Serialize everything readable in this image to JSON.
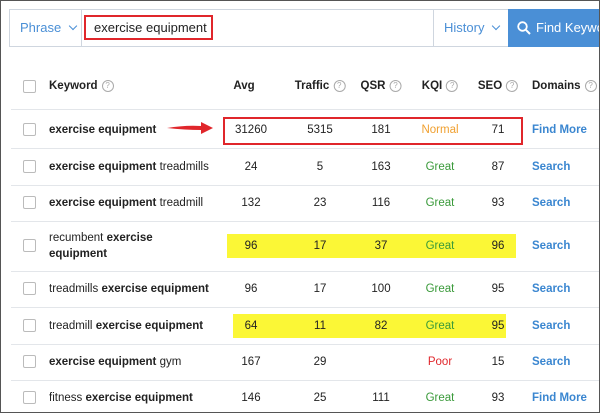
{
  "search": {
    "mode": "Phrase",
    "query": "exercise equipment",
    "history": "History",
    "button": "Find Keywo"
  },
  "table": {
    "columns": [
      {
        "label": "Keyword",
        "info": true
      },
      {
        "label": "Avg",
        "info": false
      },
      {
        "label": "Traffic",
        "info": true
      },
      {
        "label": "QSR",
        "info": true
      },
      {
        "label": "KQI",
        "info": true
      },
      {
        "label": "SEO",
        "info": true
      },
      {
        "label": "Domains",
        "info": true
      }
    ],
    "rows": [
      {
        "keyword": [
          {
            "text": "exercise equipment",
            "bold": true
          }
        ],
        "avg": 31260,
        "traffic": 5315,
        "qsr": 181,
        "kqi": "Normal",
        "kqi_color": "#f0a030",
        "seo": 71,
        "domains": "Find More",
        "outlined": true,
        "highlight": false
      },
      {
        "keyword": [
          {
            "text": "exercise equipment",
            "bold": true
          },
          {
            "text": "treadmills",
            "bold": false
          }
        ],
        "avg": 24,
        "traffic": 5,
        "qsr": 163,
        "kqi": "Great",
        "kqi_color": "#3a9a3a",
        "seo": 87,
        "domains": "Search",
        "outlined": false,
        "highlight": false
      },
      {
        "keyword": [
          {
            "text": "exercise equipment",
            "bold": true
          },
          {
            "text": "treadmill",
            "bold": false
          }
        ],
        "avg": 132,
        "traffic": 23,
        "qsr": 116,
        "kqi": "Great",
        "kqi_color": "#3a9a3a",
        "seo": 93,
        "domains": "Search",
        "outlined": false,
        "highlight": false
      },
      {
        "keyword": [
          {
            "text": "recumbent",
            "bold": false
          },
          {
            "text": "exercise equipment",
            "bold": true
          }
        ],
        "avg": 96,
        "traffic": 17,
        "qsr": 37,
        "kqi": "Great",
        "kqi_color": "#3a9a3a",
        "seo": 96,
        "domains": "Search",
        "outlined": false,
        "highlight": true
      },
      {
        "keyword": [
          {
            "text": "treadmills",
            "bold": false
          },
          {
            "text": "exercise equipment",
            "bold": true
          }
        ],
        "avg": 96,
        "traffic": 17,
        "qsr": 100,
        "kqi": "Great",
        "kqi_color": "#3a9a3a",
        "seo": 95,
        "domains": "Search",
        "outlined": false,
        "highlight": false
      },
      {
        "keyword": [
          {
            "text": "treadmill",
            "bold": false
          },
          {
            "text": "exercise equipment",
            "bold": true
          }
        ],
        "avg": 64,
        "traffic": 11,
        "qsr": 82,
        "kqi": "Great",
        "kqi_color": "#3a9a3a",
        "seo": 95,
        "domains": "Search",
        "outlined": false,
        "highlight": true
      },
      {
        "keyword": [
          {
            "text": "exercise equipment",
            "bold": true
          },
          {
            "text": "gym",
            "bold": false
          }
        ],
        "avg": 167,
        "traffic": 29,
        "qsr": null,
        "kqi": "Poor",
        "kqi_color": "#e0262b",
        "seo": 15,
        "domains": "Search",
        "outlined": false,
        "highlight": false
      },
      {
        "keyword": [
          {
            "text": "fitness",
            "bold": false
          },
          {
            "text": "exercise equipment",
            "bold": true
          }
        ],
        "avg": 146,
        "traffic": 25,
        "qsr": 111,
        "kqi": "Great",
        "kqi_color": "#3a9a3a",
        "seo": 93,
        "domains": "Find More",
        "outlined": false,
        "highlight": false
      }
    ]
  }
}
